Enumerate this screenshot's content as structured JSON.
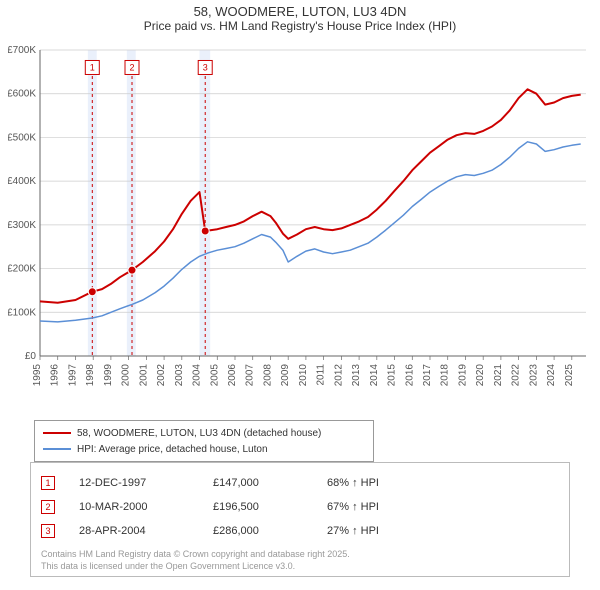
{
  "title_line1": "58, WOODMERE, LUTON, LU3 4DN",
  "title_line2": "Price paid vs. HM Land Registry's House Price Index (HPI)",
  "title_fontsize": 13,
  "chart": {
    "type": "line",
    "background_color": "#ffffff",
    "gridline_color": "#cccccc",
    "axis_color": "#666666",
    "x": {
      "min": 1995,
      "max": 2025.8,
      "ticks": [
        1995,
        1996,
        1997,
        1998,
        1999,
        2000,
        2001,
        2002,
        2003,
        2004,
        2005,
        2006,
        2007,
        2008,
        2009,
        2010,
        2011,
        2012,
        2013,
        2014,
        2015,
        2016,
        2017,
        2018,
        2019,
        2020,
        2021,
        2022,
        2023,
        2024,
        2025
      ],
      "tick_label_rotation": -90,
      "tick_fontsize": 10
    },
    "y": {
      "min": 0,
      "max": 700000,
      "ticks": [
        0,
        100000,
        200000,
        300000,
        400000,
        500000,
        600000,
        700000
      ],
      "tick_labels": [
        "£0",
        "£100K",
        "£200K",
        "£300K",
        "£400K",
        "£500K",
        "£600K",
        "£700K"
      ],
      "tick_fontsize": 10
    },
    "shaded_bands": [
      {
        "x_from": 1997.7,
        "x_to": 1998.2,
        "color": "#eaf0fb"
      },
      {
        "x_from": 1999.9,
        "x_to": 2000.4,
        "color": "#eaf0fb"
      },
      {
        "x_from": 2004.0,
        "x_to": 2004.6,
        "color": "#eaf0fb"
      }
    ],
    "vertical_markers": [
      {
        "x": 1997.95,
        "color": "#cc0000",
        "dash": "3,3",
        "label": "1",
        "label_y": 660000
      },
      {
        "x": 2000.19,
        "color": "#cc0000",
        "dash": "3,3",
        "label": "2",
        "label_y": 660000
      },
      {
        "x": 2004.32,
        "color": "#cc0000",
        "dash": "3,3",
        "label": "3",
        "label_y": 660000
      }
    ],
    "series": [
      {
        "name": "58, WOODMERE, LUTON, LU3 4DN (detached house)",
        "color": "#cc0000",
        "line_width": 2,
        "data": [
          [
            1995.0,
            125000
          ],
          [
            1996.0,
            122000
          ],
          [
            1997.0,
            128000
          ],
          [
            1997.95,
            147000
          ],
          [
            1998.5,
            153000
          ],
          [
            1999.0,
            165000
          ],
          [
            1999.5,
            180000
          ],
          [
            2000.19,
            196500
          ],
          [
            2000.8,
            215000
          ],
          [
            2001.5,
            240000
          ],
          [
            2002.0,
            262000
          ],
          [
            2002.5,
            290000
          ],
          [
            2003.0,
            325000
          ],
          [
            2003.5,
            355000
          ],
          [
            2004.0,
            375000
          ],
          [
            2004.32,
            286000
          ],
          [
            2005.0,
            290000
          ],
          [
            2005.5,
            295000
          ],
          [
            2006.0,
            300000
          ],
          [
            2006.5,
            308000
          ],
          [
            2007.0,
            320000
          ],
          [
            2007.5,
            330000
          ],
          [
            2008.0,
            320000
          ],
          [
            2008.3,
            305000
          ],
          [
            2008.7,
            280000
          ],
          [
            2009.0,
            268000
          ],
          [
            2009.5,
            278000
          ],
          [
            2010.0,
            290000
          ],
          [
            2010.5,
            295000
          ],
          [
            2011.0,
            290000
          ],
          [
            2011.5,
            288000
          ],
          [
            2012.0,
            292000
          ],
          [
            2012.5,
            300000
          ],
          [
            2013.0,
            308000
          ],
          [
            2013.5,
            318000
          ],
          [
            2014.0,
            335000
          ],
          [
            2014.5,
            355000
          ],
          [
            2015.0,
            378000
          ],
          [
            2015.5,
            400000
          ],
          [
            2016.0,
            425000
          ],
          [
            2016.5,
            445000
          ],
          [
            2017.0,
            465000
          ],
          [
            2017.5,
            480000
          ],
          [
            2018.0,
            495000
          ],
          [
            2018.5,
            505000
          ],
          [
            2019.0,
            510000
          ],
          [
            2019.5,
            508000
          ],
          [
            2020.0,
            515000
          ],
          [
            2020.5,
            525000
          ],
          [
            2021.0,
            540000
          ],
          [
            2021.5,
            562000
          ],
          [
            2022.0,
            590000
          ],
          [
            2022.5,
            610000
          ],
          [
            2023.0,
            600000
          ],
          [
            2023.5,
            575000
          ],
          [
            2024.0,
            580000
          ],
          [
            2024.5,
            590000
          ],
          [
            2025.0,
            595000
          ],
          [
            2025.5,
            598000
          ]
        ],
        "markers": [
          {
            "x": 1997.95,
            "y": 147000
          },
          {
            "x": 2000.19,
            "y": 196500
          },
          {
            "x": 2004.32,
            "y": 286000
          }
        ]
      },
      {
        "name": "HPI: Average price, detached house, Luton",
        "color": "#5b8fd6",
        "line_width": 1.5,
        "data": [
          [
            1995.0,
            80000
          ],
          [
            1996.0,
            78000
          ],
          [
            1997.0,
            82000
          ],
          [
            1997.95,
            87000
          ],
          [
            1998.5,
            92000
          ],
          [
            1999.0,
            100000
          ],
          [
            1999.5,
            108000
          ],
          [
            2000.19,
            118000
          ],
          [
            2000.8,
            128000
          ],
          [
            2001.5,
            145000
          ],
          [
            2002.0,
            160000
          ],
          [
            2002.5,
            178000
          ],
          [
            2003.0,
            198000
          ],
          [
            2003.5,
            215000
          ],
          [
            2004.0,
            228000
          ],
          [
            2004.5,
            236000
          ],
          [
            2005.0,
            242000
          ],
          [
            2005.5,
            246000
          ],
          [
            2006.0,
            250000
          ],
          [
            2006.5,
            258000
          ],
          [
            2007.0,
            268000
          ],
          [
            2007.5,
            278000
          ],
          [
            2008.0,
            272000
          ],
          [
            2008.3,
            260000
          ],
          [
            2008.7,
            242000
          ],
          [
            2009.0,
            215000
          ],
          [
            2009.5,
            228000
          ],
          [
            2010.0,
            240000
          ],
          [
            2010.5,
            245000
          ],
          [
            2011.0,
            238000
          ],
          [
            2011.5,
            234000
          ],
          [
            2012.0,
            238000
          ],
          [
            2012.5,
            242000
          ],
          [
            2013.0,
            250000
          ],
          [
            2013.5,
            258000
          ],
          [
            2014.0,
            272000
          ],
          [
            2014.5,
            288000
          ],
          [
            2015.0,
            305000
          ],
          [
            2015.5,
            322000
          ],
          [
            2016.0,
            342000
          ],
          [
            2016.5,
            358000
          ],
          [
            2017.0,
            375000
          ],
          [
            2017.5,
            388000
          ],
          [
            2018.0,
            400000
          ],
          [
            2018.5,
            410000
          ],
          [
            2019.0,
            415000
          ],
          [
            2019.5,
            413000
          ],
          [
            2020.0,
            418000
          ],
          [
            2020.5,
            425000
          ],
          [
            2021.0,
            438000
          ],
          [
            2021.5,
            455000
          ],
          [
            2022.0,
            475000
          ],
          [
            2022.5,
            490000
          ],
          [
            2023.0,
            485000
          ],
          [
            2023.5,
            468000
          ],
          [
            2024.0,
            472000
          ],
          [
            2024.5,
            478000
          ],
          [
            2025.0,
            482000
          ],
          [
            2025.5,
            485000
          ]
        ],
        "markers": []
      }
    ]
  },
  "legend": {
    "items": [
      {
        "color": "#cc0000",
        "width": 2,
        "label": "58, WOODMERE, LUTON, LU3 4DN (detached house)"
      },
      {
        "color": "#5b8fd6",
        "width": 1.5,
        "label": "HPI: Average price, detached house, Luton"
      }
    ]
  },
  "transactions": [
    {
      "n": "1",
      "date": "12-DEC-1997",
      "price": "£147,000",
      "pct": "68% ↑ HPI",
      "color": "#cc0000"
    },
    {
      "n": "2",
      "date": "10-MAR-2000",
      "price": "£196,500",
      "pct": "67% ↑ HPI",
      "color": "#cc0000"
    },
    {
      "n": "3",
      "date": "28-APR-2004",
      "price": "£286,000",
      "pct": "27% ↑ HPI",
      "color": "#cc0000"
    }
  ],
  "license_line1": "Contains HM Land Registry data © Crown copyright and database right 2025.",
  "license_line2": "This data is licensed under the Open Government Licence v3.0."
}
